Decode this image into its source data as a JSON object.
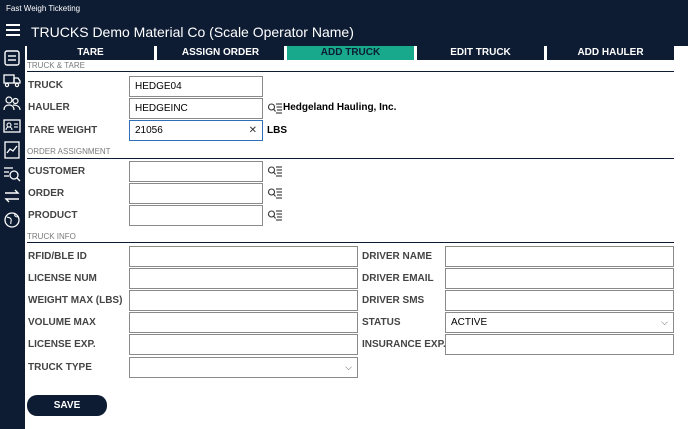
{
  "window": {
    "title": "Fast Weigh Ticketing"
  },
  "appbar": {
    "title": "TRUCKS Demo Material Co (Scale Operator Name)"
  },
  "sidebar": {
    "icons": [
      "ticket-icon",
      "truck-icon",
      "people-icon",
      "id-card-icon",
      "report-icon",
      "search-list-icon",
      "sync-icon",
      "globe-settings-icon"
    ]
  },
  "tabs": [
    {
      "label": "TARE",
      "active": false
    },
    {
      "label": "ASSIGN ORDER",
      "active": false
    },
    {
      "label": "ADD TRUCK",
      "active": true
    },
    {
      "label": "EDIT TRUCK",
      "active": false
    },
    {
      "label": "ADD HAULER",
      "active": false
    }
  ],
  "sections": {
    "truck_tare": "TRUCK & TARE",
    "order_assignment": "ORDER ASSIGNMENT",
    "truck_info": "TRUCK INFO"
  },
  "truck_tare": {
    "truck_label": "TRUCK",
    "truck_value": "HEDGE04",
    "hauler_label": "HAULER",
    "hauler_value": "HEDGEINC",
    "hauler_name": "Hedgeland Hauling, Inc.",
    "tare_label": "TARE WEIGHT",
    "tare_value": "21056",
    "tare_unit": "LBS"
  },
  "order_assignment": {
    "customer_label": "CUSTOMER",
    "customer_value": "",
    "order_label": "ORDER",
    "order_value": "",
    "product_label": "PRODUCT",
    "product_value": ""
  },
  "truck_info": {
    "rfid_label": "RFID/BLE ID",
    "license_num_label": "LICENSE NUM",
    "weight_max_label": "WEIGHT MAX (LBS)",
    "volume_max_label": "VOLUME MAX",
    "license_exp_label": "LICENSE EXP.",
    "truck_type_label": "TRUCK TYPE",
    "truck_type_value": "",
    "driver_name_label": "DRIVER NAME",
    "driver_email_label": "DRIVER EMAIL",
    "driver_sms_label": "DRIVER SMS",
    "status_label": "STATUS",
    "status_value": "ACTIVE",
    "insurance_exp_label": "INSURANCE EXP."
  },
  "actions": {
    "save_label": "SAVE"
  },
  "colors": {
    "navy": "#0d1b33",
    "accent": "#18a88c",
    "focus": "#2f6fb7"
  }
}
